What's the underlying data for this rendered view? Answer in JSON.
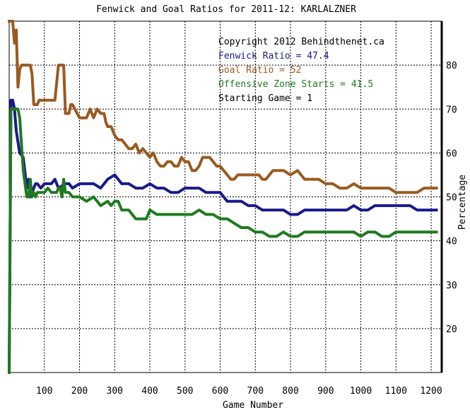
{
  "chart_data": {
    "type": "line",
    "title": "Fenwick and Goal Ratios for 2011-12: KARLALZNER",
    "xlabel": "Game Number",
    "ylabel": "Percentage",
    "xlim": [
      0,
      1230
    ],
    "ylim": [
      10,
      90
    ],
    "x_ticks": [
      100,
      200,
      300,
      400,
      500,
      600,
      700,
      800,
      900,
      1000,
      1100,
      1200
    ],
    "y_ticks": [
      20,
      30,
      40,
      50,
      60,
      70,
      80
    ],
    "grid": true,
    "annotations": [
      {
        "text": "Copyright 2012 Behindthenet.ca",
        "color": "#000000"
      },
      {
        "text": "Fenwick Ratio = 47.4",
        "color": "#1a1a8c"
      },
      {
        "text": "Goal Ratio = 52",
        "color": "#9a5a20"
      },
      {
        "text": "Offensive Zone Starts = 41.5",
        "color": "#1f7a1f"
      },
      {
        "text": "Starting Game = 1",
        "color": "#000000"
      }
    ],
    "series": [
      {
        "color": "#9a5a20",
        "x": [
          0,
          5,
          10,
          15,
          20,
          25,
          30,
          35,
          40,
          45,
          60,
          65,
          70,
          75,
          80,
          85,
          90,
          100,
          110,
          130,
          140,
          145,
          150,
          155,
          160,
          165,
          170,
          175,
          180,
          200,
          220,
          230,
          240,
          250,
          260,
          270,
          275,
          280,
          290,
          300,
          310,
          320,
          330,
          340,
          350,
          360,
          370,
          380,
          390,
          400,
          410,
          420,
          430,
          440,
          450,
          460,
          470,
          480,
          490,
          500,
          510,
          520,
          530,
          540,
          550,
          560,
          570,
          580,
          590,
          600,
          610,
          620,
          630,
          640,
          650,
          660,
          680,
          700,
          710,
          720,
          730,
          740,
          750,
          760,
          780,
          800,
          820,
          840,
          860,
          880,
          900,
          920,
          940,
          960,
          980,
          1000,
          1020,
          1040,
          1060,
          1080,
          1100,
          1120,
          1140,
          1160,
          1180,
          1200,
          1215
        ],
        "y": [
          90,
          90,
          90,
          85,
          88,
          75,
          79,
          80,
          80,
          80,
          80,
          78,
          71,
          71,
          71,
          72,
          72,
          72,
          72,
          72,
          80,
          80,
          80,
          80,
          69,
          69,
          69,
          71,
          71,
          68,
          68,
          70,
          68,
          70,
          69,
          69,
          67,
          66,
          66,
          64,
          63,
          63,
          62,
          61,
          61,
          62,
          60,
          61,
          60,
          59,
          60,
          58,
          57,
          57,
          58,
          58,
          57,
          57,
          59,
          58,
          58,
          56,
          56,
          57,
          59,
          59,
          59,
          58,
          57,
          57,
          56,
          55,
          54,
          54,
          55,
          55,
          55,
          55,
          55,
          54,
          54,
          55,
          56,
          56,
          56,
          55,
          56,
          54,
          54,
          54,
          53,
          53,
          52,
          52,
          53,
          52,
          52,
          52,
          52,
          52,
          51,
          51,
          51,
          51,
          52,
          52,
          52
        ]
      },
      {
        "color": "#1a1a8c",
        "x": [
          0,
          5,
          10,
          15,
          20,
          30,
          40,
          50,
          55,
          60,
          70,
          75,
          80,
          90,
          100,
          120,
          130,
          140,
          160,
          170,
          180,
          200,
          220,
          240,
          260,
          280,
          300,
          310,
          320,
          330,
          340,
          360,
          380,
          400,
          420,
          440,
          460,
          480,
          500,
          520,
          540,
          560,
          580,
          600,
          620,
          640,
          660,
          680,
          700,
          720,
          740,
          760,
          780,
          800,
          820,
          840,
          860,
          880,
          900,
          920,
          940,
          960,
          980,
          1000,
          1020,
          1040,
          1060,
          1080,
          1100,
          1120,
          1140,
          1160,
          1180,
          1200,
          1215
        ],
        "y": [
          10,
          72,
          72,
          70,
          65,
          60,
          59,
          52,
          54,
          50,
          52,
          53,
          53,
          52,
          53,
          53,
          54,
          52,
          53,
          53,
          52,
          53,
          53,
          53,
          52,
          54,
          55,
          54,
          53,
          53,
          53,
          52,
          52,
          53,
          52,
          52,
          51,
          51,
          52,
          52,
          52,
          51,
          51,
          51,
          49,
          49,
          49,
          48,
          48,
          47,
          47,
          47,
          47,
          46,
          46,
          47,
          47,
          47,
          47,
          47,
          47,
          47,
          48,
          47,
          47,
          48,
          48,
          48,
          48,
          48,
          48,
          47,
          47,
          47,
          47
        ]
      },
      {
        "color": "#1f7a1f",
        "x": [
          0,
          5,
          10,
          15,
          20,
          25,
          30,
          40,
          50,
          55,
          60,
          65,
          70,
          75,
          80,
          100,
          110,
          120,
          135,
          140,
          145,
          150,
          155,
          160,
          170,
          180,
          190,
          200,
          220,
          240,
          260,
          280,
          290,
          300,
          310,
          320,
          330,
          340,
          350,
          360,
          370,
          380,
          390,
          400,
          420,
          440,
          460,
          480,
          500,
          520,
          540,
          560,
          580,
          600,
          620,
          640,
          660,
          680,
          700,
          720,
          740,
          760,
          780,
          800,
          820,
          840,
          860,
          880,
          900,
          920,
          940,
          960,
          980,
          1000,
          1020,
          1040,
          1060,
          1080,
          1100,
          1120,
          1140,
          1160,
          1180,
          1200,
          1215
        ],
        "y": [
          10,
          70,
          70,
          70,
          70,
          70,
          68,
          56,
          50,
          50,
          54,
          50,
          51,
          50,
          51,
          51,
          52,
          51,
          51,
          52,
          52,
          50,
          54,
          51,
          51,
          50,
          50,
          50,
          49,
          50,
          48,
          49,
          48,
          49,
          49,
          47,
          47,
          47,
          46,
          45,
          45,
          45,
          45,
          47,
          46,
          46,
          46,
          46,
          46,
          46,
          47,
          46,
          46,
          45,
          45,
          44,
          43,
          43,
          42,
          42,
          41,
          41,
          42,
          41,
          41,
          42,
          42,
          42,
          42,
          42,
          42,
          42,
          42,
          41,
          42,
          42,
          41,
          41,
          42,
          42,
          42,
          42,
          42,
          42,
          42
        ]
      }
    ]
  }
}
